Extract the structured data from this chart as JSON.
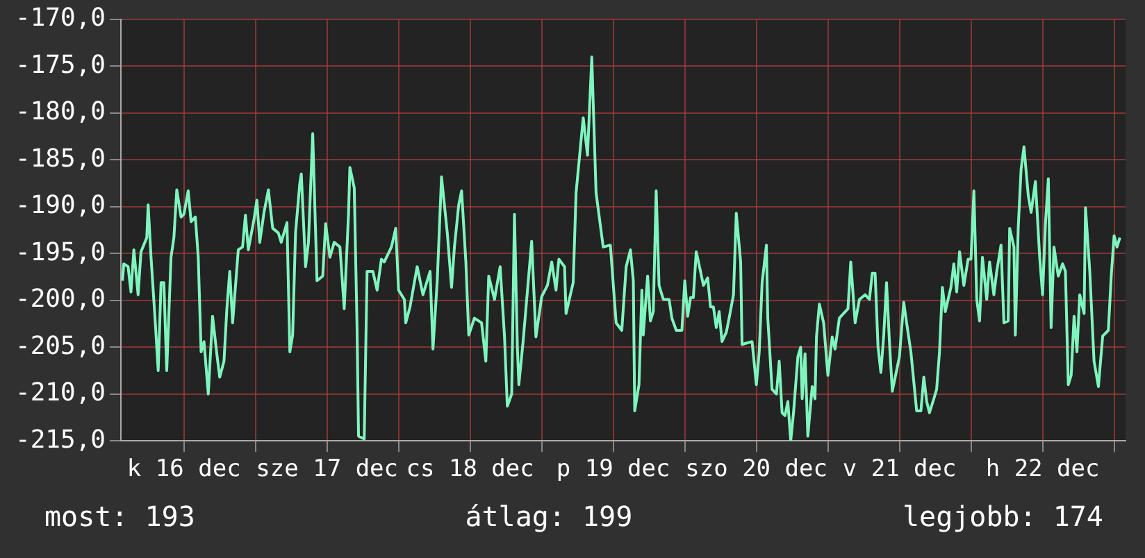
{
  "chart_data": {
    "type": "line",
    "annotations": [
      "most: 193",
      "átlag: 199",
      "legjobb: 174"
    ],
    "xlim": [
      "--12-16T01:26",
      "--12-23T01:55"
    ],
    "xticks": [
      {
        "value": "--12-16T12:00",
        "label": "k 16 dec"
      },
      {
        "value": "--12-17T00:00",
        "label": null
      },
      {
        "value": "--12-17T12:00",
        "label": "sze 17 dec"
      },
      {
        "value": "--12-18T00:00",
        "label": null
      },
      {
        "value": "--12-18T12:00",
        "label": "cs 18 dec"
      },
      {
        "value": "--12-19T00:00",
        "label": null
      },
      {
        "value": "--12-19T12:00",
        "label": "p 19 dec"
      },
      {
        "value": "--12-20T00:00",
        "label": null
      },
      {
        "value": "--12-20T12:00",
        "label": "szo 20 dec"
      },
      {
        "value": "--12-21T00:00",
        "label": null
      },
      {
        "value": "--12-21T12:00",
        "label": "v 21 dec"
      },
      {
        "value": "--12-22T00:00",
        "label": null
      },
      {
        "value": "--12-22T12:00",
        "label": "h 22 dec"
      },
      {
        "value": "--12-23T00:00",
        "label": null
      }
    ],
    "ylim": [
      -215,
      -170
    ],
    "yticks": [
      {
        "value": -215,
        "label": "-215,0"
      },
      {
        "value": -210,
        "label": "-210,0"
      },
      {
        "value": -205,
        "label": "-205,0"
      },
      {
        "value": -200,
        "label": "-200,0"
      },
      {
        "value": -195,
        "label": "-195,0"
      },
      {
        "value": -190,
        "label": "-190,0"
      },
      {
        "value": -185,
        "label": "-185,0"
      },
      {
        "value": -180,
        "label": "-180,0"
      },
      {
        "value": -175,
        "label": "-175,0"
      },
      {
        "value": -170,
        "label": "-170,0"
      }
    ],
    "grid": true,
    "legend": false,
    "marker": "none",
    "line_style": "solid",
    "series": [
      {
        "color": "#7ff5be",
        "x": [
          "--12-16T01:41",
          "--12-16T01:55",
          "--12-16T02:38",
          "--12-16T03:07",
          "--12-16T03:36",
          "--12-16T04:19",
          "--12-16T04:48",
          "--12-16T05:46",
          "--12-16T06:00",
          "--12-16T06:29",
          "--12-16T07:12",
          "--12-16T07:41",
          "--12-16T08:10",
          "--12-16T08:38",
          "--12-16T09:07",
          "--12-16T09:50",
          "--12-16T10:19",
          "--12-16T10:48",
          "--12-16T11:31",
          "--12-16T12:00",
          "--12-16T12:43",
          "--12-16T13:12",
          "--12-16T13:55",
          "--12-16T14:24",
          "--12-16T14:53",
          "--12-16T15:22",
          "--12-16T16:05",
          "--12-16T16:48",
          "--12-16T17:31",
          "--12-16T18:00",
          "--12-16T18:43",
          "--12-16T19:12",
          "--12-16T19:41",
          "--12-16T20:10",
          "--12-16T21:07",
          "--12-16T21:50",
          "--12-16T22:19",
          "--12-16T22:48",
          "--12-16T23:46",
          "--12-17T00:14",
          "--12-17T00:43",
          "--12-17T01:26",
          "--12-17T02:10",
          "--12-17T02:53",
          "--12-17T03:50",
          "--12-17T04:19",
          "--12-17T05:17",
          "--12-17T05:46",
          "--12-17T06:14",
          "--12-17T06:43",
          "--12-17T07:26",
          "--12-17T07:41",
          "--12-17T08:24",
          "--12-17T08:53",
          "--12-17T09:36",
          "--12-17T10:19",
          "--12-17T11:17",
          "--12-17T11:46",
          "--12-17T12:29",
          "--12-17T13:12",
          "--12-17T14:10",
          "--12-17T14:53",
          "--12-17T15:36",
          "--12-17T15:50",
          "--12-17T16:34",
          "--12-17T17:02",
          "--12-17T17:17",
          "--12-17T18:14",
          "--12-17T18:43",
          "--12-17T19:41",
          "--12-17T20:24",
          "--12-17T21:07",
          "--12-17T21:36",
          "--12-17T22:48",
          "--12-17T23:31",
          "--12-18T00:00",
          "--12-18T00:58",
          "--12-18T01:12",
          "--12-18T01:55",
          "--12-18T03:07",
          "--12-18T04:05",
          "--12-18T04:48",
          "--12-18T05:17",
          "--12-18T05:46",
          "--12-18T06:29",
          "--12-18T07:12",
          "--12-18T08:10",
          "--12-18T08:53",
          "--12-18T09:22",
          "--12-18T10:05",
          "--12-18T10:34",
          "--12-18T11:17",
          "--12-18T11:46",
          "--12-18T12:43",
          "--12-18T13:55",
          "--12-18T14:38",
          "--12-18T15:07",
          "--12-18T16:05",
          "--12-18T17:02",
          "--12-18T17:46",
          "--12-18T18:14",
          "--12-18T18:58",
          "--12-18T19:26",
          "--12-18T19:55",
          "--12-18T20:10",
          "--12-18T20:53",
          "--12-18T22:19",
          "--12-18T23:02",
          "--12-19T00:00",
          "--12-19T00:58",
          "--12-19T01:41",
          "--12-19T02:24",
          "--12-19T02:53",
          "--12-19T03:50",
          "--12-19T04:05",
          "--12-19T05:17",
          "--12-19T05:46",
          "--12-19T06:58",
          "--12-19T07:41",
          "--12-19T08:24",
          "--12-19T09:07",
          "--12-19T10:19",
          "--12-19T11:31",
          "--12-19T12:29",
          "--12-19T13:26",
          "--12-19T14:10",
          "--12-19T14:53",
          "--12-19T15:22",
          "--12-19T15:36",
          "--12-19T16:19",
          "--12-19T16:48",
          "--12-19T17:02",
          "--12-19T17:46",
          "--12-19T18:14",
          "--12-19T18:43",
          "--12-19T19:12",
          "--12-19T19:41",
          "--12-19T20:24",
          "--12-19T21:22",
          "--12-19T21:50",
          "--12-19T22:34",
          "--12-19T23:31",
          "--12-20T00:00",
          "--12-20T00:29",
          "--12-20T00:58",
          "--12-20T01:26",
          "--12-20T01:55",
          "--12-20T02:38",
          "--12-20T03:07",
          "--12-20T03:50",
          "--12-20T04:19",
          "--12-20T04:48",
          "--12-20T05:17",
          "--12-20T05:46",
          "--12-20T06:14",
          "--12-20T06:58",
          "--12-20T07:26",
          "--12-20T08:10",
          "--12-20T08:38",
          "--12-20T09:22",
          "--12-20T09:36",
          "--12-20T11:17",
          "--12-20T12:00",
          "--12-20T12:29",
          "--12-20T12:58",
          "--12-20T13:41",
          "--12-20T13:55",
          "--12-20T14:38",
          "--12-20T15:22",
          "--12-20T15:50",
          "--12-20T16:19",
          "--12-20T16:48",
          "--12-20T17:17",
          "--12-20T17:46",
          "--12-20T18:14",
          "--12-20T18:58",
          "--12-20T19:26",
          "--12-20T19:41",
          "--12-20T20:10",
          "--12-20T20:38",
          "--12-20T21:22",
          "--12-20T21:50",
          "--12-20T22:05",
          "--12-20T22:34",
          "--12-20T23:17",
          "--12-21T00:00",
          "--12-21T00:43",
          "--12-21T01:12",
          "--12-21T01:55",
          "--12-21T02:38",
          "--12-21T03:22",
          "--12-21T03:50",
          "--12-21T04:34",
          "--12-21T05:17",
          "--12-21T06:14",
          "--12-21T06:58",
          "--12-21T07:26",
          "--12-21T07:55",
          "--12-21T08:24",
          "--12-21T08:53",
          "--12-21T09:22",
          "--12-21T09:50",
          "--12-21T10:19",
          "--12-21T10:48",
          "--12-21T11:31",
          "--12-21T12:00",
          "--12-21T12:43",
          "--12-21T13:12",
          "--12-21T13:55",
          "--12-21T14:53",
          "--12-21T15:36",
          "--12-21T16:05",
          "--12-21T16:34",
          "--12-21T17:02",
          "--12-21T17:46",
          "--12-21T18:14",
          "--12-21T18:43",
          "--12-21T19:12",
          "--12-21T19:41",
          "--12-21T20:38",
          "--12-21T21:07",
          "--12-21T21:36",
          "--12-21T22:05",
          "--12-21T22:48",
          "--12-21T23:31",
          "--12-22T00:00",
          "--12-22T00:29",
          "--12-22T00:58",
          "--12-22T01:26",
          "--12-22T01:55",
          "--12-22T02:38",
          "--12-22T03:07",
          "--12-22T03:50",
          "--12-22T04:19",
          "--12-22T05:02",
          "--12-22T05:31",
          "--12-22T06:14",
          "--12-22T06:29",
          "--12-22T07:12",
          "--12-22T07:26",
          "--12-22T07:55",
          "--12-22T08:24",
          "--12-22T08:53",
          "--12-22T09:36",
          "--12-22T10:05",
          "--12-22T10:48",
          "--12-22T11:31",
          "--12-22T12:00",
          "--12-22T12:29",
          "--12-22T12:58",
          "--12-22T13:26",
          "--12-22T13:55",
          "--12-22T14:38",
          "--12-22T15:22",
          "--12-22T15:50",
          "--12-22T16:19",
          "--12-22T16:48",
          "--12-22T17:17",
          "--12-22T17:46",
          "--12-22T18:14",
          "--12-22T18:58",
          "--12-22T19:12",
          "--12-22T19:55",
          "--12-22T20:38",
          "--12-22T21:22",
          "--12-22T22:05",
          "--12-22T23:02",
          "--12-22T23:31",
          "--12-23T00:00",
          "--12-23T00:29",
          "--12-23T00:58"
        ],
        "values": [
          -197.9,
          -196.1,
          -196.4,
          -199.1,
          -194.6,
          -199.4,
          -194.8,
          -193.3,
          -189.8,
          -195.4,
          -202.4,
          -207.5,
          -198.1,
          -198.1,
          -207.5,
          -195.4,
          -193.3,
          -188.2,
          -191.1,
          -190.8,
          -188.3,
          -191.6,
          -191.1,
          -195.4,
          -205.5,
          -204.4,
          -210.0,
          -201.7,
          -205.7,
          -208.2,
          -206.5,
          -200.9,
          -196.9,
          -202.4,
          -194.6,
          -194.3,
          -190.9,
          -194.6,
          -191.3,
          -189.3,
          -193.8,
          -190.6,
          -188.2,
          -192.3,
          -192.8,
          -193.8,
          -191.7,
          -205.5,
          -203.7,
          -192.8,
          -187.5,
          -186.5,
          -196.4,
          -193.8,
          -182.2,
          -197.9,
          -197.4,
          -191.8,
          -195.4,
          -193.8,
          -194.3,
          -200.9,
          -190.8,
          -185.8,
          -188.0,
          -202.9,
          -214.5,
          -214.8,
          -196.9,
          -196.9,
          -198.9,
          -195.6,
          -195.9,
          -194.3,
          -192.3,
          -198.9,
          -199.9,
          -202.4,
          -200.7,
          -196.4,
          -199.4,
          -197.9,
          -196.9,
          -205.2,
          -197.9,
          -186.8,
          -192.8,
          -198.6,
          -194.3,
          -189.8,
          -188.3,
          -195.9,
          -203.7,
          -201.9,
          -202.4,
          -206.5,
          -197.4,
          -199.9,
          -196.4,
          -203.9,
          -211.3,
          -210.0,
          -190.8,
          -204.9,
          -209.0,
          -204.4,
          -193.7,
          -203.9,
          -199.6,
          -198.4,
          -195.9,
          -198.9,
          -195.6,
          -196.4,
          -201.4,
          -198.1,
          -188.5,
          -180.5,
          -184.5,
          -174.0,
          -188.5,
          -194.3,
          -194.1,
          -202.4,
          -203.2,
          -196.4,
          -194.6,
          -197.9,
          -211.8,
          -209.0,
          -198.9,
          -203.7,
          -197.4,
          -202.2,
          -201.2,
          -188.3,
          -198.4,
          -199.9,
          -199.9,
          -201.9,
          -203.2,
          -203.2,
          -197.9,
          -201.7,
          -199.7,
          -199.7,
          -194.8,
          -196.9,
          -198.4,
          -197.6,
          -200.7,
          -200.7,
          -202.9,
          -201.2,
          -204.4,
          -203.4,
          -201.9,
          -199.4,
          -190.7,
          -195.9,
          -204.7,
          -204.4,
          -209.0,
          -205.5,
          -198.1,
          -194.1,
          -201.9,
          -209.5,
          -210.0,
          -206.5,
          -212.0,
          -212.3,
          -210.8,
          -215.0,
          -212.0,
          -206.0,
          -205.0,
          -210.5,
          -205.7,
          -214.5,
          -209.2,
          -210.5,
          -203.9,
          -200.4,
          -202.4,
          -208.0,
          -203.9,
          -205.2,
          -201.9,
          -201.4,
          -200.9,
          -195.9,
          -202.4,
          -199.9,
          -199.4,
          -199.9,
          -197.1,
          -197.1,
          -204.9,
          -207.7,
          -203.7,
          -198.1,
          -204.4,
          -209.7,
          -207.5,
          -206.0,
          -200.2,
          -202.4,
          -205.5,
          -211.8,
          -211.8,
          -208.2,
          -210.8,
          -212.0,
          -210.5,
          -209.5,
          -205.5,
          -198.6,
          -201.2,
          -198.6,
          -196.1,
          -199.1,
          -194.8,
          -198.4,
          -195.6,
          -195.6,
          -188.3,
          -199.9,
          -202.2,
          -195.4,
          -199.9,
          -195.9,
          -199.4,
          -196.9,
          -194.1,
          -202.4,
          -202.2,
          -192.3,
          -194.3,
          -203.7,
          -192.3,
          -186.0,
          -183.6,
          -188.8,
          -190.6,
          -187.3,
          -195.4,
          -199.4,
          -191.8,
          -187.0,
          -202.9,
          -194.3,
          -197.4,
          -196.1,
          -196.9,
          -209.0,
          -208.0,
          -201.7,
          -205.5,
          -199.4,
          -201.4,
          -190.1,
          -196.9,
          -206.5,
          -209.2,
          -203.8,
          -203.2,
          -197.4,
          -193.1,
          -194.3,
          -193.3
        ]
      }
    ]
  }
}
